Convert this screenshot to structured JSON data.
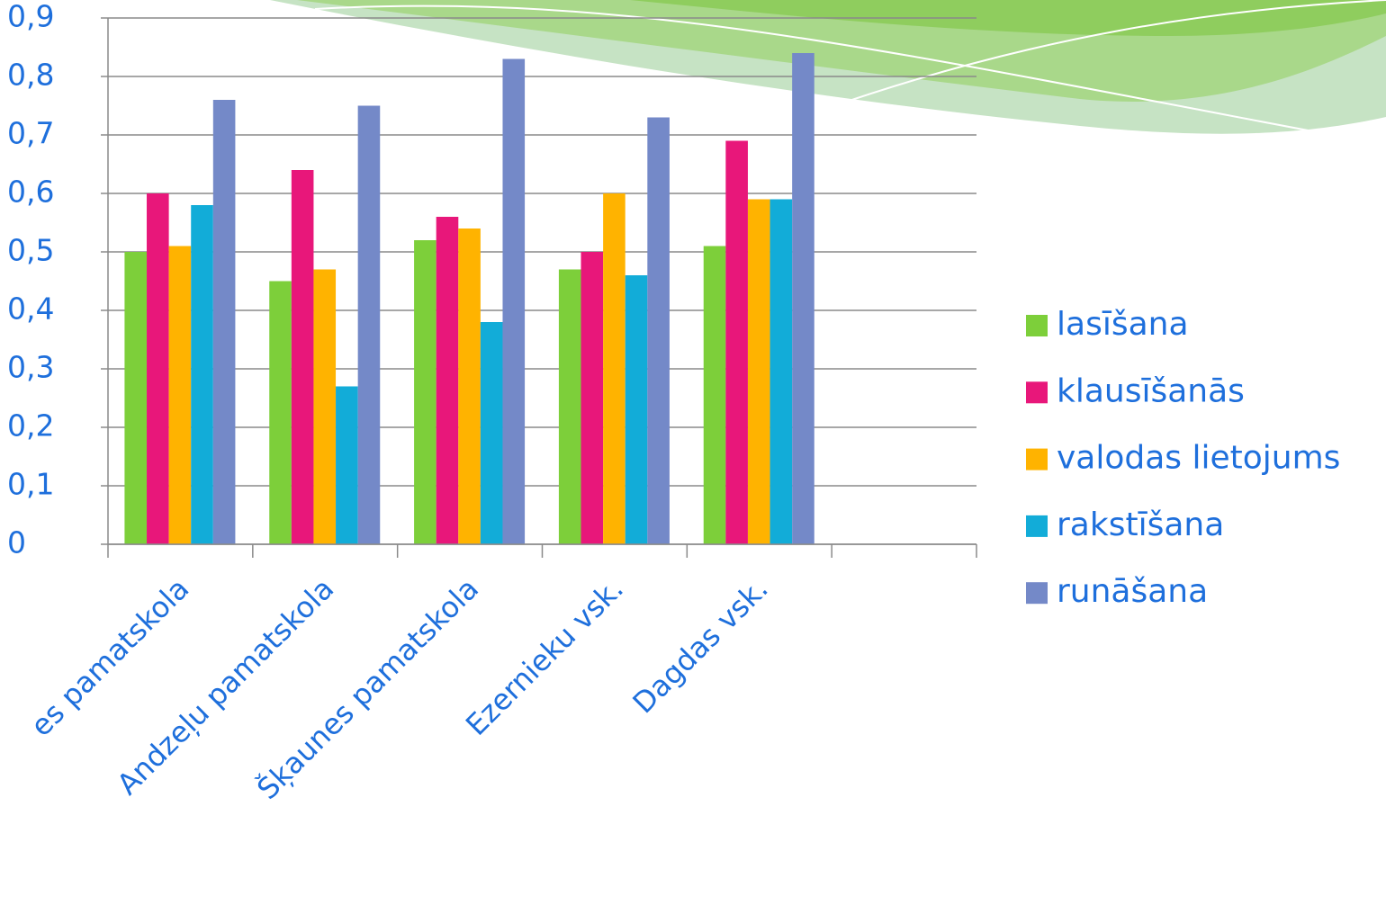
{
  "chart_data": {
    "type": "bar",
    "categories": [
      "es pamatskola",
      "Andzeļu pamatskola",
      "Šķaunes pamatskola",
      "Ezernieku vsk.",
      "Dagdas vsk.",
      null
    ],
    "series": [
      {
        "name": "lasīšana",
        "color": "#7dcf3a",
        "values": [
          0.5,
          0.45,
          0.52,
          0.47,
          0.51,
          null
        ]
      },
      {
        "name": "klausīšanās",
        "color": "#e8177a",
        "values": [
          0.6,
          0.64,
          0.56,
          0.5,
          0.69,
          null
        ]
      },
      {
        "name": "valodas lietojums",
        "color": "#ffb300",
        "values": [
          0.51,
          0.47,
          0.54,
          0.6,
          0.59,
          null
        ]
      },
      {
        "name": "rakstīšana",
        "color": "#12acd8",
        "values": [
          0.58,
          0.27,
          0.38,
          0.46,
          0.59,
          null
        ]
      },
      {
        "name": "runāšana",
        "color": "#7489c8",
        "values": [
          0.76,
          0.75,
          0.83,
          0.73,
          0.84,
          null
        ]
      }
    ],
    "ylim": [
      0,
      0.9
    ],
    "yticks": [
      0,
      {
        "value": 0.1,
        "label": "0,1"
      },
      {
        "value": 0.2,
        "label": "0,2"
      },
      {
        "value": 0.3,
        "label": "0,3"
      },
      {
        "value": 0.4,
        "label": "0,4"
      },
      {
        "value": 0.5,
        "label": "0,5"
      },
      {
        "value": 0.6,
        "label": "0,6"
      },
      {
        "value": 0.7,
        "label": "0,7"
      },
      {
        "value": 0.8,
        "label": "0,8"
      },
      {
        "value": 0.9,
        "label": "0,9"
      }
    ],
    "grid": true,
    "legend": "right"
  }
}
